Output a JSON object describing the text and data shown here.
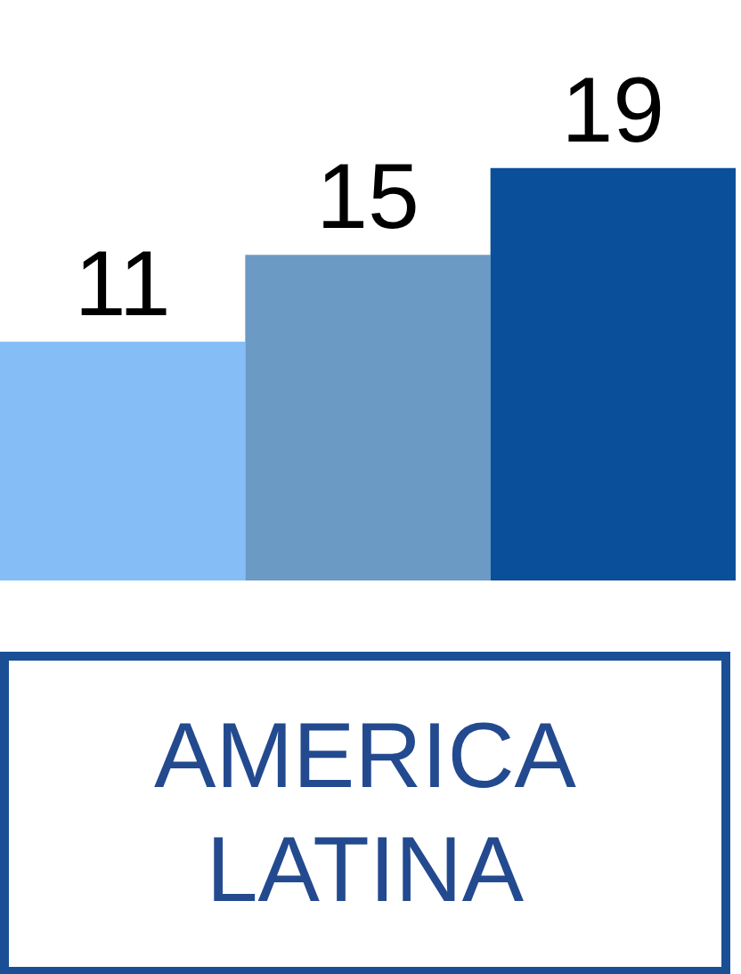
{
  "chart_data": {
    "type": "bar",
    "xlabel": "AMERICA LATINA",
    "categories": [
      null,
      null,
      null
    ],
    "values": [
      11,
      15,
      19
    ],
    "colors": [
      "#85bdf7",
      "#6b9ac4",
      "#0a4f99"
    ],
    "data_labels": true
  }
}
